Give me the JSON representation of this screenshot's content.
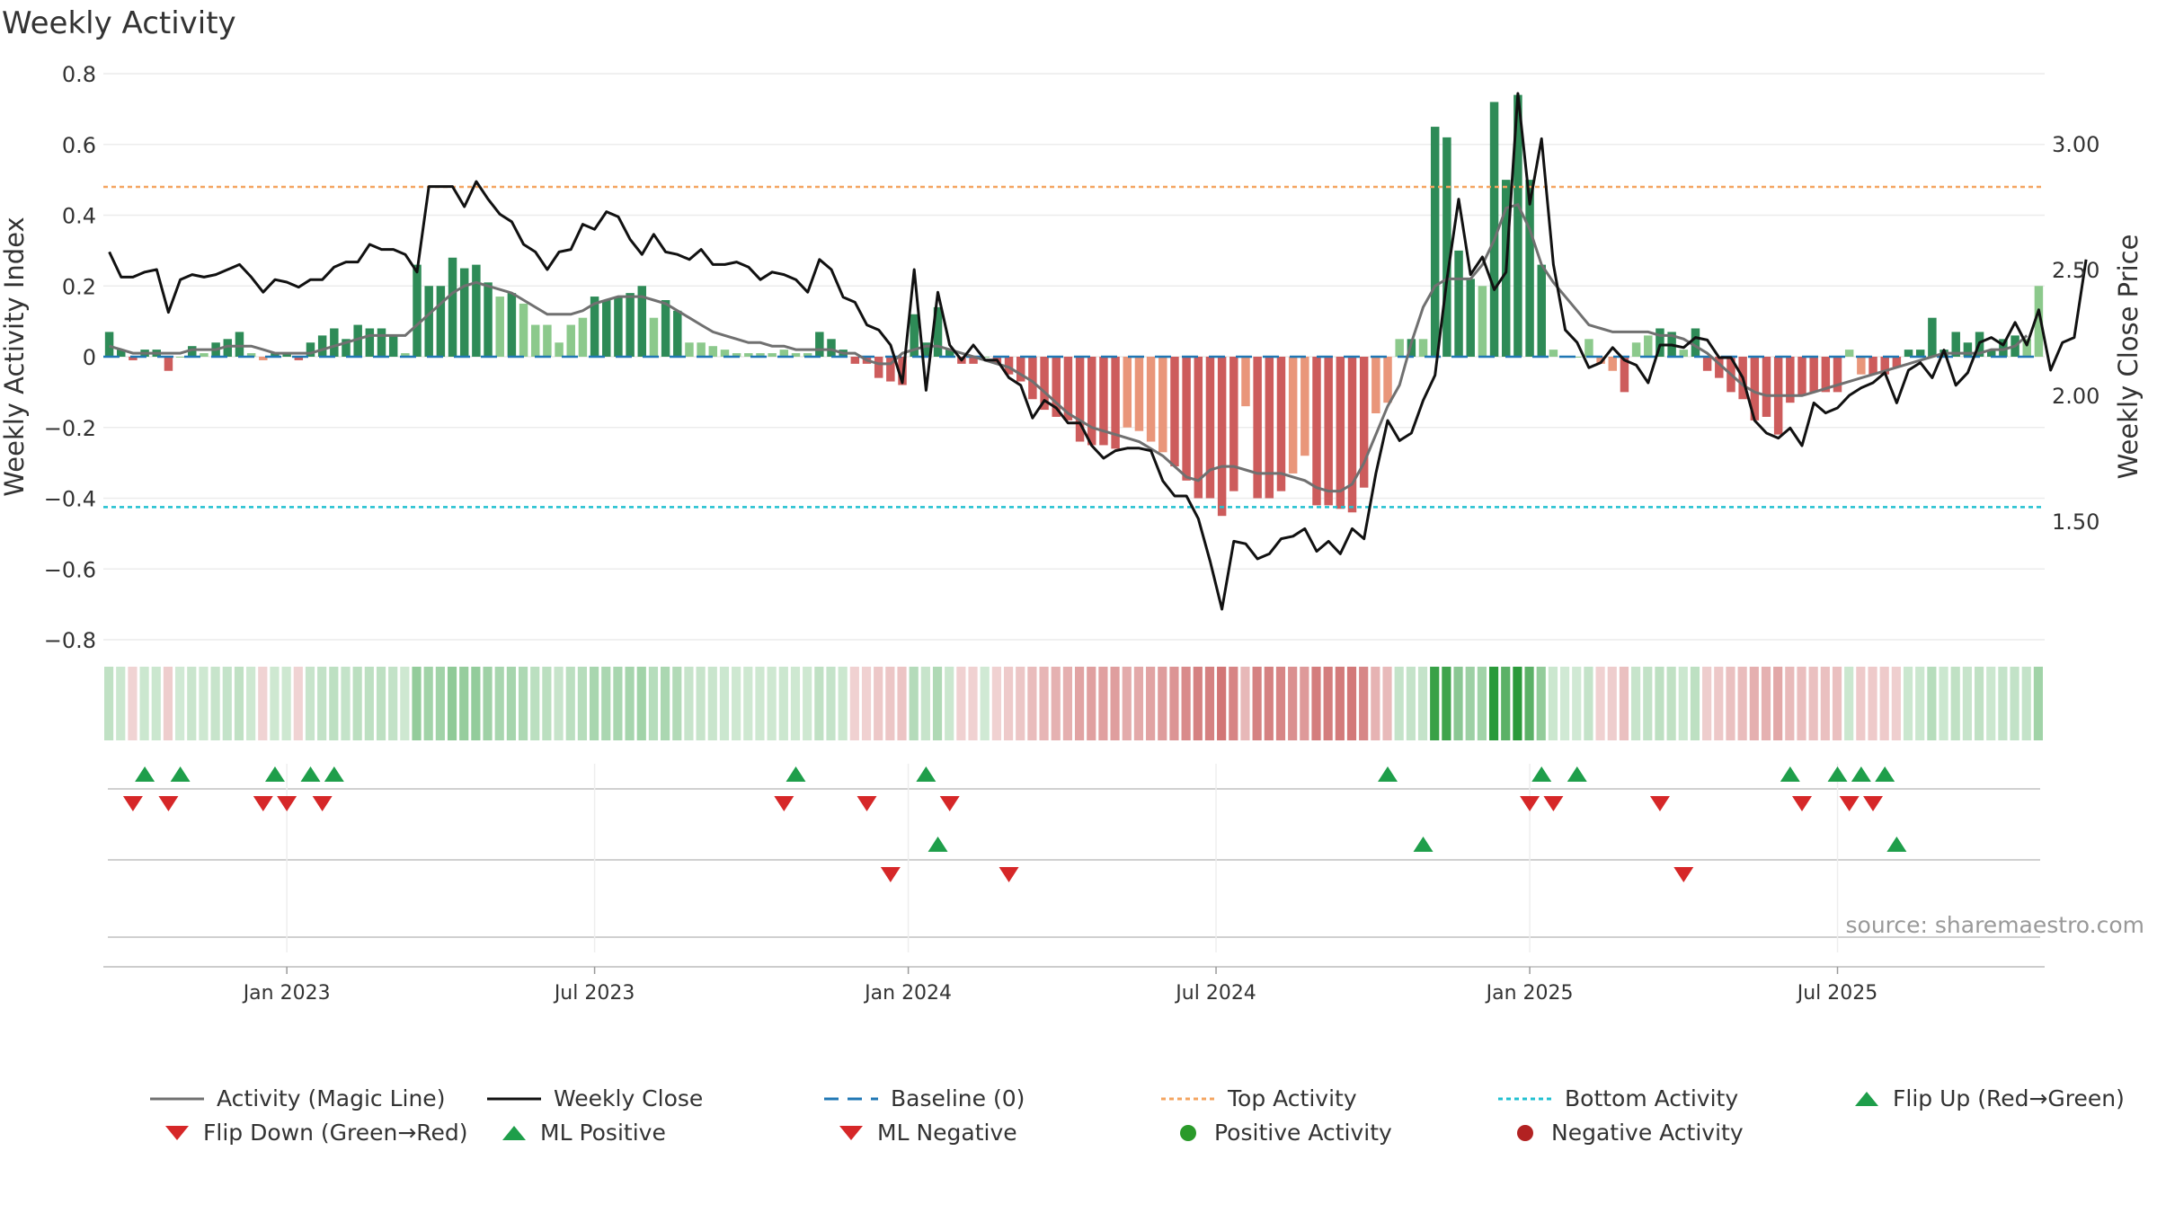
{
  "title": "Weekly Activity",
  "source": "source: sharemaestro.com",
  "colors": {
    "pos_dark": "#2e8b57",
    "pos_light": "#8cc98c",
    "neg_dark": "#cd5c5c",
    "neg_light": "#e9967a",
    "magic": "#707070",
    "close": "#111111",
    "baseline": "#1f77b4",
    "top": "#f4a460",
    "bottom": "#20c0d0",
    "flip_up": "#1e9e4a",
    "flip_down": "#d62728"
  },
  "legend": {
    "magic": "Activity (Magic Line)",
    "close": "Weekly Close",
    "baseline": "Baseline (0)",
    "top": "Top Activity",
    "bottom": "Bottom Activity",
    "flip_up": "Flip Up (Red→Green)",
    "flip_down": "Flip Down (Green→Red)",
    "ml_pos": "ML Positive",
    "ml_neg": "ML Negative",
    "pos_act": "Positive Activity",
    "neg_act": "Negative Activity"
  },
  "chart_data": {
    "type": "bar",
    "title": "Weekly Activity",
    "ylabel": "Weekly Activity Index",
    "y2label": "Weekly Close Price",
    "ylim": [
      -0.88,
      0.82
    ],
    "y2lim": [
      1.04,
      3.28
    ],
    "yticks": [
      0.8,
      0.6,
      0.4,
      0.2,
      0,
      -0.2,
      -0.4,
      -0.6,
      -0.8
    ],
    "ytick_labels": [
      "0.8",
      "0.6",
      "0.4",
      "0.2",
      "0",
      "−0.2",
      "−0.4",
      "−0.6",
      "−0.8"
    ],
    "y2ticks": [
      3.0,
      2.5,
      2.0,
      1.5
    ],
    "y2tick_labels": [
      "3.00",
      "2.50",
      "2.00",
      "1.50"
    ],
    "x_ticks": [
      {
        "label": "Jan 2023",
        "week": 15
      },
      {
        "label": "Jul 2023",
        "week": 41
      },
      {
        "label": "Jan 2024",
        "week": 67.5
      },
      {
        "label": "Jul 2024",
        "week": 93.5
      },
      {
        "label": "Jan 2025",
        "week": 120
      },
      {
        "label": "Jul 2025",
        "week": 146
      }
    ],
    "top_activity": 0.48,
    "bottom_activity": -0.425,
    "activity": [
      0.07,
      0.02,
      -0.01,
      0.02,
      0.02,
      -0.04,
      0,
      0.03,
      0.01,
      0.04,
      0.05,
      0.07,
      0.01,
      -0.01,
      0.01,
      0.01,
      -0.01,
      0.04,
      0.06,
      0.08,
      0.05,
      0.09,
      0.08,
      0.08,
      0.06,
      0.01,
      0.26,
      0.2,
      0.2,
      0.28,
      0.25,
      0.26,
      0.21,
      0.17,
      0.18,
      0.15,
      0.09,
      0.09,
      0.04,
      0.09,
      0.11,
      0.17,
      0.16,
      0.17,
      0.18,
      0.2,
      0.11,
      0.16,
      0.13,
      0.04,
      0.04,
      0.03,
      0.02,
      0.01,
      0.01,
      0.01,
      0.01,
      0.02,
      0.01,
      0.01,
      0.07,
      0.05,
      0.02,
      -0.02,
      -0.02,
      -0.06,
      -0.07,
      -0.08,
      0.12,
      0.04,
      0.14,
      0.02,
      -0.02,
      -0.02,
      0,
      -0.02,
      -0.05,
      -0.07,
      -0.12,
      -0.15,
      -0.17,
      -0.18,
      -0.24,
      -0.25,
      -0.25,
      -0.26,
      -0.2,
      -0.21,
      -0.24,
      -0.27,
      -0.31,
      -0.35,
      -0.4,
      -0.4,
      -0.45,
      -0.38,
      -0.14,
      -0.4,
      -0.4,
      -0.38,
      -0.33,
      -0.28,
      -0.42,
      -0.42,
      -0.43,
      -0.44,
      -0.37,
      -0.16,
      -0.13,
      0.05,
      0.05,
      0.05,
      0.65,
      0.62,
      0.3,
      0.22,
      0.2,
      0.72,
      0.5,
      0.74,
      0.5,
      0.26,
      0.02,
      0,
      0,
      0.05,
      -0.02,
      -0.04,
      -0.1,
      0.04,
      0.06,
      0.08,
      0.07,
      0.02,
      0.08,
      -0.04,
      -0.06,
      -0.1,
      -0.12,
      -0.18,
      -0.17,
      -0.22,
      -0.13,
      -0.11,
      -0.1,
      -0.1,
      -0.1,
      0.02,
      -0.05,
      -0.05,
      -0.05,
      -0.03,
      0.02,
      0.02,
      0.11,
      0.02,
      0.07,
      0.04,
      0.07,
      0.02,
      0.05,
      0.06,
      0.05,
      0.2
    ],
    "close": [
      2.57,
      2.47,
      2.47,
      2.49,
      2.5,
      2.33,
      2.46,
      2.48,
      2.47,
      2.48,
      2.5,
      2.52,
      2.47,
      2.41,
      2.46,
      2.45,
      2.43,
      2.46,
      2.46,
      2.51,
      2.53,
      2.53,
      2.6,
      2.58,
      2.58,
      2.56,
      2.49,
      2.83,
      2.83,
      2.83,
      2.75,
      2.85,
      2.78,
      2.72,
      2.69,
      2.6,
      2.57,
      2.5,
      2.57,
      2.58,
      2.68,
      2.66,
      2.73,
      2.71,
      2.62,
      2.56,
      2.64,
      2.57,
      2.56,
      2.54,
      2.58,
      2.52,
      2.52,
      2.53,
      2.51,
      2.46,
      2.49,
      2.48,
      2.46,
      2.41,
      2.54,
      2.5,
      2.39,
      2.37,
      2.28,
      2.26,
      2.2,
      2.05,
      2.5,
      2.02,
      2.41,
      2.2,
      2.14,
      2.2,
      2.14,
      2.14,
      2.07,
      2.04,
      1.91,
      1.98,
      1.95,
      1.89,
      1.89,
      1.8,
      1.75,
      1.78,
      1.79,
      1.79,
      1.78,
      1.66,
      1.6,
      1.6,
      1.51,
      1.34,
      1.15,
      1.42,
      1.41,
      1.35,
      1.37,
      1.43,
      1.44,
      1.47,
      1.38,
      1.42,
      1.37,
      1.47,
      1.43,
      1.69,
      1.9,
      1.82,
      1.85,
      1.98,
      2.08,
      2.46,
      2.78,
      2.48,
      2.55,
      2.42,
      2.49,
      3.2,
      2.76,
      3.02,
      2.52,
      2.26,
      2.21,
      2.11,
      2.13,
      2.19,
      2.14,
      2.12,
      2.05,
      2.2,
      2.2,
      2.19,
      2.23,
      2.22,
      2.15,
      2.15,
      2.07,
      1.9,
      1.85,
      1.83,
      1.87,
      1.8,
      1.97,
      1.93,
      1.95,
      2.0,
      2.03,
      2.05,
      2.09,
      1.97,
      2.1,
      2.13,
      2.07,
      2.18,
      2.04,
      2.09,
      2.21,
      2.23,
      2.2,
      2.29,
      2.2,
      2.34,
      2.1,
      2.21,
      2.23,
      2.54
    ],
    "magic_line": [
      0.03,
      0.02,
      0.01,
      0.01,
      0.01,
      0.01,
      0.01,
      0.02,
      0.02,
      0.02,
      0.03,
      0.03,
      0.03,
      0.02,
      0.01,
      0.01,
      0.01,
      0.01,
      0.02,
      0.03,
      0.04,
      0.05,
      0.06,
      0.06,
      0.06,
      0.06,
      0.09,
      0.12,
      0.15,
      0.18,
      0.2,
      0.21,
      0.2,
      0.19,
      0.18,
      0.16,
      0.14,
      0.12,
      0.12,
      0.12,
      0.13,
      0.15,
      0.16,
      0.17,
      0.17,
      0.17,
      0.16,
      0.15,
      0.13,
      0.11,
      0.09,
      0.07,
      0.06,
      0.05,
      0.04,
      0.04,
      0.03,
      0.03,
      0.02,
      0.02,
      0.02,
      0.02,
      0.01,
      0.01,
      -0.01,
      -0.02,
      -0.02,
      0.01,
      0.02,
      0.03,
      0.03,
      0.02,
      0.01,
      0,
      -0.01,
      -0.02,
      -0.03,
      -0.05,
      -0.07,
      -0.1,
      -0.13,
      -0.16,
      -0.18,
      -0.2,
      -0.21,
      -0.22,
      -0.23,
      -0.24,
      -0.26,
      -0.28,
      -0.31,
      -0.34,
      -0.35,
      -0.32,
      -0.31,
      -0.31,
      -0.32,
      -0.33,
      -0.33,
      -0.33,
      -0.34,
      -0.35,
      -0.37,
      -0.38,
      -0.38,
      -0.36,
      -0.3,
      -0.22,
      -0.14,
      -0.08,
      0.04,
      0.14,
      0.2,
      0.22,
      0.22,
      0.22,
      0.26,
      0.33,
      0.42,
      0.43,
      0.36,
      0.26,
      0.21,
      0.17,
      0.13,
      0.09,
      0.08,
      0.07,
      0.07,
      0.07,
      0.07,
      0.06,
      0.06,
      0.05,
      0.03,
      0.01,
      -0.02,
      -0.05,
      -0.08,
      -0.1,
      -0.11,
      -0.11,
      -0.11,
      -0.11,
      -0.1,
      -0.09,
      -0.08,
      -0.07,
      -0.06,
      -0.05,
      -0.04,
      -0.03,
      -0.02,
      -0.01,
      0,
      0.01,
      0.01,
      0.01,
      0.01,
      0.02,
      0.02,
      0.03,
      0.06
    ],
    "flip_up_row1": [
      3,
      6,
      14,
      17,
      19,
      58,
      69,
      108,
      121,
      124,
      142,
      146,
      148,
      150
    ],
    "flip_down_row1": [
      2,
      5,
      13,
      15,
      18,
      57,
      64,
      71,
      120,
      122,
      131,
      143,
      147,
      149
    ],
    "flip_up_row2": [
      70,
      111,
      151
    ],
    "flip_down_row2": [
      66,
      76,
      133
    ]
  }
}
